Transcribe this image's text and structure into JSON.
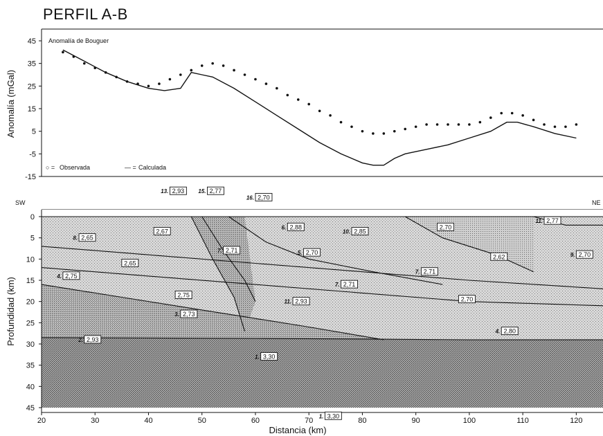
{
  "title": "PERFIL A-B",
  "chart_data": [
    {
      "type": "line",
      "title": "Anomalía de Bouguer",
      "ylabel": "Anomalía (mGal)",
      "ylim": [
        -15,
        45
      ],
      "yticks": [
        "45",
        "35",
        "25",
        "15",
        "5",
        "-5",
        "-15"
      ],
      "xlim": [
        20,
        125
      ],
      "legend": [
        {
          "symbol": "○ =",
          "label": "Observada"
        },
        {
          "symbol": "— =",
          "label": "Calculada"
        }
      ],
      "series": [
        {
          "name": "Observada",
          "style": "dots",
          "x": [
            24,
            26,
            28,
            30,
            32,
            34,
            36,
            38,
            40,
            42,
            44,
            46,
            48,
            50,
            52,
            54,
            56,
            58,
            60,
            62,
            64,
            66,
            68,
            70,
            72,
            74,
            76,
            78,
            80,
            82,
            84,
            86,
            88,
            90,
            92,
            94,
            96,
            98,
            100,
            102,
            104,
            106,
            108,
            110,
            112,
            114,
            116,
            118,
            120
          ],
          "values": [
            40,
            38,
            35,
            33,
            31,
            29,
            27,
            26,
            25,
            26,
            28,
            30,
            32,
            34,
            35,
            34,
            32,
            30,
            28,
            26,
            24,
            21,
            19,
            17,
            14,
            12,
            9,
            7,
            5,
            4,
            4,
            5,
            6,
            7,
            8,
            8,
            8,
            8,
            8,
            9,
            11,
            13,
            13,
            12,
            10,
            8,
            7,
            7,
            8
          ]
        },
        {
          "name": "Calculada",
          "style": "line",
          "x": [
            24,
            28,
            32,
            36,
            40,
            43,
            46,
            48,
            50,
            52,
            56,
            60,
            64,
            68,
            72,
            76,
            80,
            82,
            84,
            86,
            88,
            92,
            96,
            100,
            104,
            107,
            109,
            112,
            116,
            120
          ],
          "values": [
            41,
            36,
            31,
            27,
            24,
            23,
            24,
            31,
            30,
            29,
            24,
            18,
            12,
            6,
            0,
            -5,
            -9,
            -10,
            -10,
            -7,
            -5,
            -3,
            -1,
            2,
            5,
            9,
            9,
            7,
            4,
            2
          ]
        }
      ]
    },
    {
      "type": "cross-section",
      "ylabel": "Profundidad (km)",
      "xlabel": "Distancia (km)",
      "ylim": [
        0,
        45
      ],
      "xlim": [
        20,
        125
      ],
      "yticks": [
        "0",
        "5",
        "10",
        "15",
        "20",
        "25",
        "30",
        "35",
        "40",
        "45"
      ],
      "xticks": [
        "20",
        "30",
        "40",
        "50",
        "60",
        "70",
        "80",
        "90",
        "100",
        "110",
        "120"
      ],
      "end_labels": {
        "left": "SW",
        "right": "NE"
      },
      "body_labels": [
        {
          "num": "8.",
          "density": "2,65",
          "x": 27,
          "y": 5
        },
        {
          "num": "",
          "density": "2,67",
          "x": 41,
          "y": 3.5
        },
        {
          "num": "",
          "density": "2,65",
          "x": 35,
          "y": 11
        },
        {
          "num": "4.",
          "density": "2,75",
          "x": 24,
          "y": 14
        },
        {
          "num": "",
          "density": "2,75",
          "x": 45,
          "y": 18.5
        },
        {
          "num": "3.",
          "density": "2,73",
          "x": 46,
          "y": 23
        },
        {
          "num": "2.",
          "density": "2,93",
          "x": 28,
          "y": 29
        },
        {
          "num": "13.",
          "density": "2,93",
          "x": 44,
          "y": -6
        },
        {
          "num": "15.",
          "density": "2,77",
          "x": 51,
          "y": -6
        },
        {
          "num": "16.",
          "density": "2,70",
          "x": 60,
          "y": -4.5
        },
        {
          "num": "7.",
          "density": "2,71",
          "x": 54,
          "y": 8
        },
        {
          "num": "6.",
          "density": "2,88",
          "x": 66,
          "y": 2.5
        },
        {
          "num": "10.",
          "density": "2,85",
          "x": 78,
          "y": 3.5
        },
        {
          "num": "5.",
          "density": "2,70",
          "x": 69,
          "y": 8.5
        },
        {
          "num": "7.",
          "density": "2,71",
          "x": 76,
          "y": 16
        },
        {
          "num": "11.",
          "density": "2,93",
          "x": 67,
          "y": 20
        },
        {
          "num": "7.",
          "density": "2,71",
          "x": 91,
          "y": 13
        },
        {
          "num": "",
          "density": "2,70",
          "x": 94,
          "y": 2.5
        },
        {
          "num": "",
          "density": "2,62",
          "x": 104,
          "y": 9.5
        },
        {
          "num": "",
          "density": "2,70",
          "x": 98,
          "y": 19.5
        },
        {
          "num": "11.",
          "density": "2,77",
          "x": 114,
          "y": 1
        },
        {
          "num": "9.",
          "density": "2,70",
          "x": 120,
          "y": 9
        },
        {
          "num": "4.",
          "density": "2,80",
          "x": 106,
          "y": 27
        },
        {
          "num": "1.",
          "density": "3,30",
          "x": 61,
          "y": 33
        },
        {
          "num": "1.",
          "density": "3,30",
          "x": 73,
          "y": 47
        }
      ],
      "boundaries": [
        [
          [
            20,
            7
          ],
          [
            40,
            9
          ],
          [
            60,
            11
          ],
          [
            80,
            13
          ],
          [
            100,
            15
          ],
          [
            125,
            17
          ]
        ],
        [
          [
            20,
            12
          ],
          [
            40,
            14
          ],
          [
            60,
            16
          ],
          [
            80,
            18
          ],
          [
            100,
            20
          ],
          [
            125,
            21
          ]
        ],
        [
          [
            20,
            16
          ],
          [
            35,
            19
          ],
          [
            50,
            22
          ],
          [
            60,
            24
          ],
          [
            70,
            26
          ],
          [
            84,
            29
          ]
        ],
        [
          [
            20,
            28.5
          ],
          [
            60,
            28.7
          ],
          [
            100,
            29
          ],
          [
            125,
            29
          ]
        ],
        [
          [
            48,
            0
          ],
          [
            52,
            10
          ],
          [
            56,
            19
          ],
          [
            58,
            27
          ]
        ],
        [
          [
            50,
            0
          ],
          [
            54,
            8
          ],
          [
            58,
            15
          ],
          [
            60,
            20
          ]
        ],
        [
          [
            55,
            0
          ],
          [
            62,
            6
          ],
          [
            70,
            10
          ],
          [
            82,
            13
          ],
          [
            95,
            16
          ]
        ],
        [
          [
            88,
            0
          ],
          [
            95,
            5
          ],
          [
            105,
            9
          ],
          [
            112,
            13
          ]
        ],
        [
          [
            112,
            0
          ],
          [
            118,
            2
          ],
          [
            125,
            2
          ]
        ]
      ]
    }
  ]
}
